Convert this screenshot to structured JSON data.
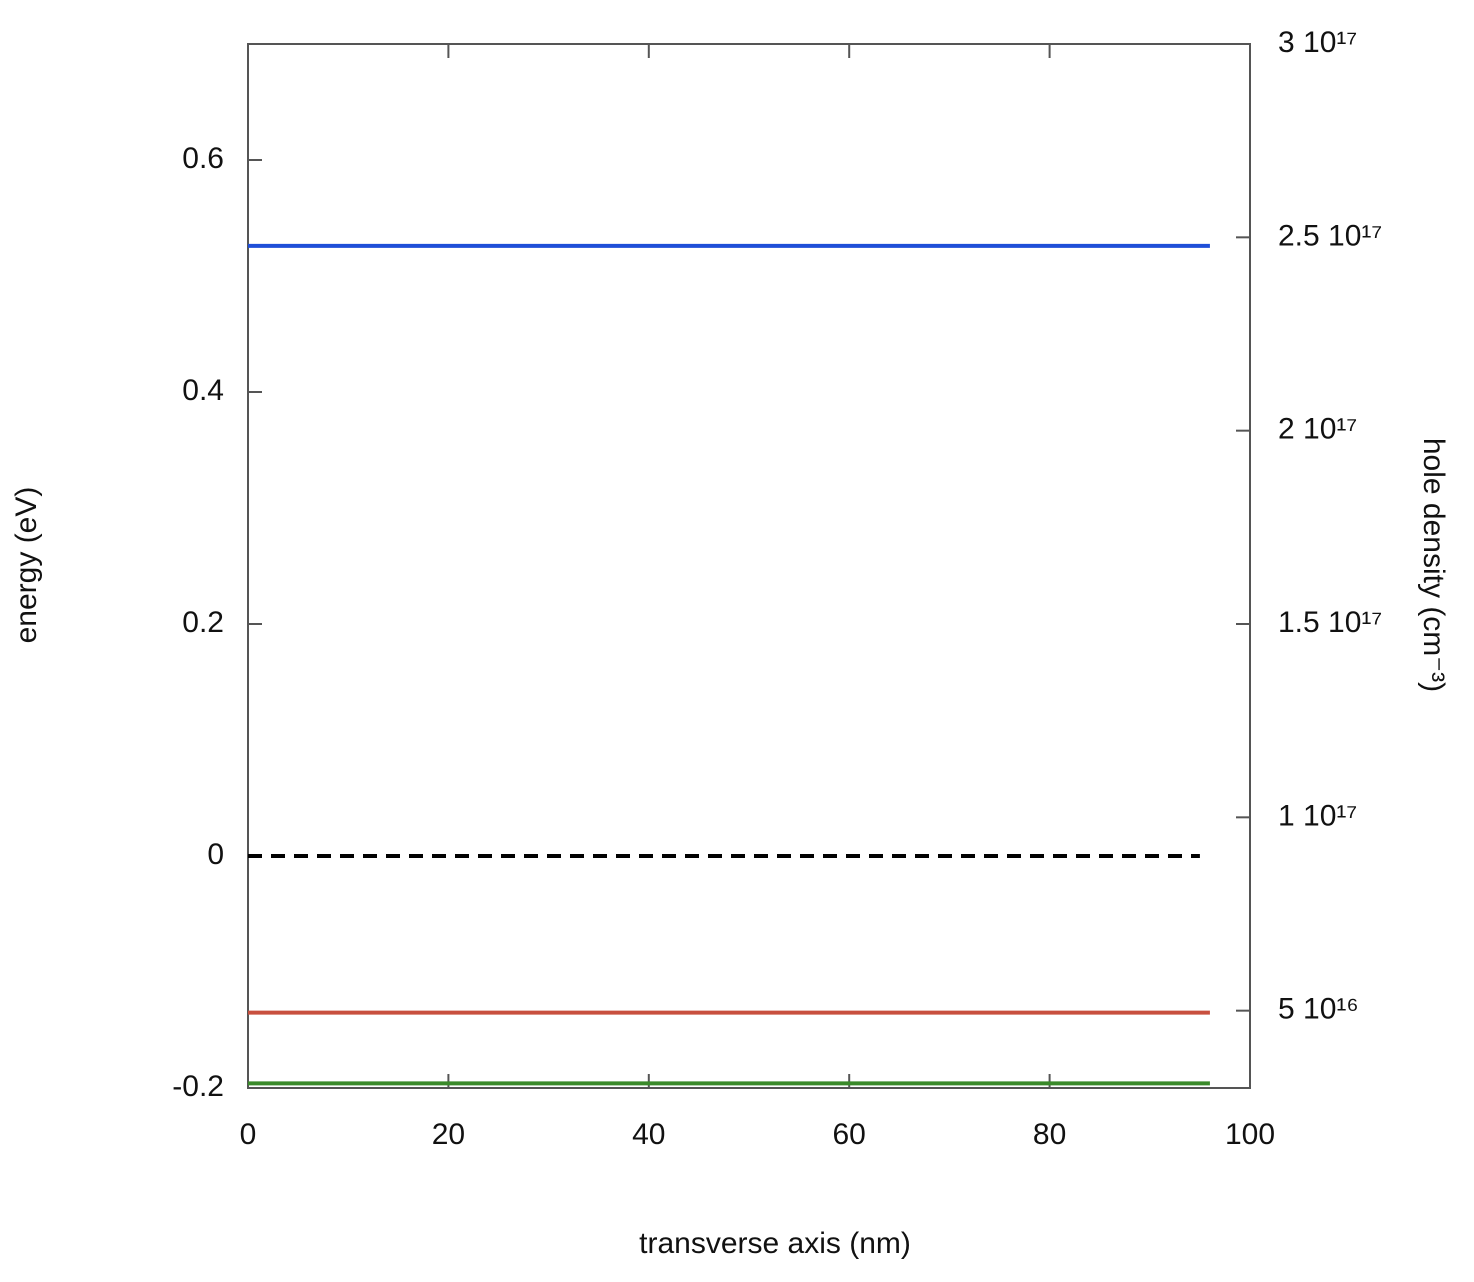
{
  "chart_data": {
    "type": "line",
    "xlabel": "transverse axis (nm)",
    "ylabel": "energy (eV)",
    "y2label": "hole density (cm⁻³)",
    "xlim": [
      0,
      100
    ],
    "xticks": [
      0,
      20,
      40,
      60,
      80,
      100
    ],
    "ylim": [
      -0.2,
      0.7
    ],
    "yticks": [
      -0.2,
      0,
      0.2,
      0.4,
      0.6
    ],
    "y2lim": [
      30000000000000000,
      300000000000000000
    ],
    "y2ticks": [
      {
        "value": 50000000000000000,
        "label": "5 10¹⁶"
      },
      {
        "value": 100000000000000000,
        "label": "1 10¹⁷"
      },
      {
        "value": 150000000000000000,
        "label": "1.5 10¹⁷"
      },
      {
        "value": 200000000000000000,
        "label": "2 10¹⁷"
      },
      {
        "value": 250000000000000000,
        "label": "2.5 10¹⁷"
      },
      {
        "value": 300000000000000000,
        "label": "3 10¹⁷"
      }
    ],
    "series": [
      {
        "color": "#1f4fd8",
        "x": [
          0,
          96
        ],
        "values": [
          0.526,
          0.526
        ]
      },
      {
        "color": "#000000",
        "dashed": true,
        "x": [
          0,
          95
        ],
        "values": [
          0,
          0
        ]
      },
      {
        "color": "#c8503f",
        "x": [
          0,
          96
        ],
        "values": [
          -0.135,
          -0.135
        ]
      },
      {
        "color": "#3a8a2a",
        "x": [
          0,
          96
        ],
        "values": [
          -0.196,
          -0.196
        ]
      }
    ]
  }
}
